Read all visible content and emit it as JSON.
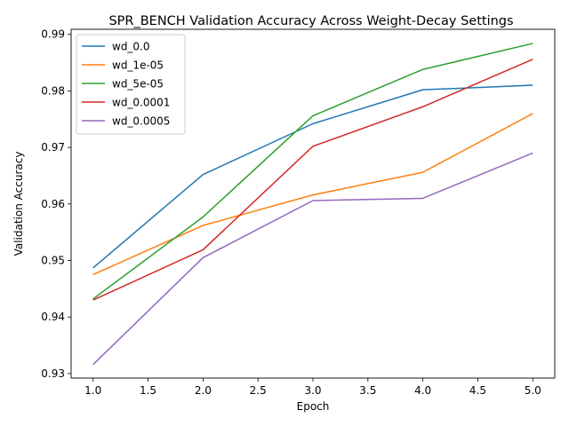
{
  "chart_data": {
    "type": "line",
    "title": "SPR_BENCH Validation Accuracy Across Weight-Decay Settings",
    "xlabel": "Epoch",
    "ylabel": "Validation Accuracy",
    "xlim": [
      0.8,
      5.2
    ],
    "ylim": [
      0.9292,
      0.9909
    ],
    "xticks": [
      1.0,
      1.5,
      2.0,
      2.5,
      3.0,
      3.5,
      4.0,
      4.5,
      5.0
    ],
    "xtick_labels": [
      "1.0",
      "1.5",
      "2.0",
      "2.5",
      "3.0",
      "3.5",
      "4.0",
      "4.5",
      "5.0"
    ],
    "yticks": [
      0.93,
      0.94,
      0.95,
      0.96,
      0.97,
      0.98,
      0.99
    ],
    "ytick_labels": [
      "0.93",
      "0.94",
      "0.95",
      "0.96",
      "0.97",
      "0.98",
      "0.99"
    ],
    "grid": false,
    "legend_position": "upper-left",
    "x": [
      1,
      2,
      3,
      4,
      5
    ],
    "series": [
      {
        "name": "wd_0.0",
        "color": "#1f77b4",
        "values": [
          0.9487,
          0.9652,
          0.9742,
          0.9802,
          0.981
        ]
      },
      {
        "name": "wd_1e-05",
        "color": "#ff7f0e",
        "values": [
          0.9475,
          0.9562,
          0.9616,
          0.9656,
          0.976
        ]
      },
      {
        "name": "wd_5e-05",
        "color": "#2ca02c",
        "values": [
          0.9432,
          0.9577,
          0.9756,
          0.9838,
          0.9884
        ]
      },
      {
        "name": "wd_0.0001",
        "color": "#d62728",
        "values": [
          0.943,
          0.9519,
          0.9702,
          0.9772,
          0.9856
        ]
      },
      {
        "name": "wd_0.0005",
        "color": "#9467bd",
        "values": [
          0.9316,
          0.9505,
          0.9606,
          0.961,
          0.969
        ]
      }
    ]
  }
}
